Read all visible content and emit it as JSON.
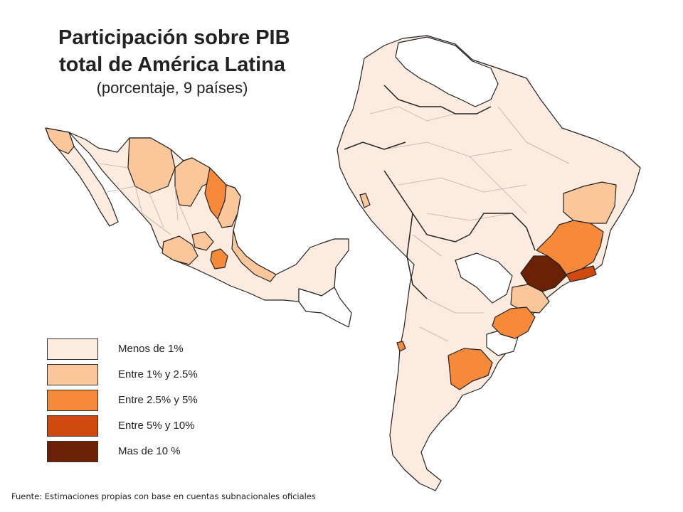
{
  "title": {
    "line1": "Participación sobre PIB",
    "line2": "total de América Latina",
    "subtitle": "(porcentaje, 9 países)"
  },
  "legend": {
    "items": [
      {
        "label": "Menos de 1%",
        "color": "#fdebe0"
      },
      {
        "label": "Entre 1%  y 2.5%",
        "color": "#fbc79a"
      },
      {
        "label": "Entre 2.5%  y 5%",
        "color": "#f7893a"
      },
      {
        "label": "Entre 5%  y 10%",
        "color": "#d04a0f"
      },
      {
        "label": "Mas de 10 %",
        "color": "#6b2106"
      }
    ]
  },
  "colors": {
    "no_data": "#ffffff",
    "border": "#222222",
    "internal_border": "#b8b0aa"
  },
  "source": "Fuente: Estimaciones propias con base en cuentas subnacionales oficiales"
}
